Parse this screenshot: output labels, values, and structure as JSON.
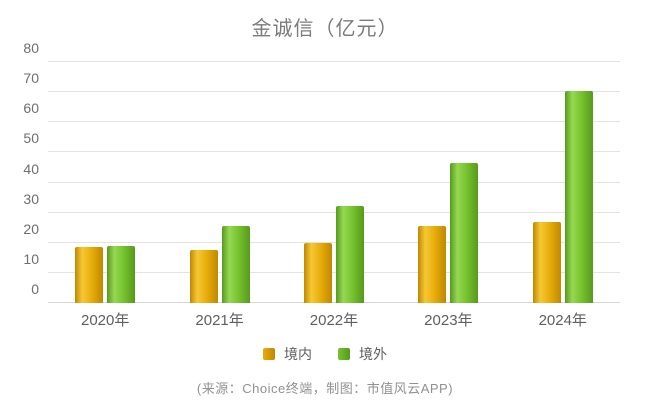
{
  "title": "金诚信（亿元）",
  "source_note": "(来源：Choice终端，制图：市值风云APP)",
  "colors": {
    "background": "#ffffff",
    "title_text": "#7b7b7b",
    "axis_text": "#6e6e6e",
    "gridline": "#e3e3e3",
    "source_text": "#919191"
  },
  "chart_data": {
    "type": "bar",
    "title": "金诚信（亿元）",
    "categories": [
      "2020年",
      "2021年",
      "2022年",
      "2023年",
      "2024年"
    ],
    "series": [
      {
        "name": "境内",
        "values": [
          18.5,
          17.6,
          20.0,
          25.5,
          27.0
        ],
        "color": "#E8AE0B",
        "color_light": "#F6C835",
        "color_dark": "#C08800"
      },
      {
        "name": "境外",
        "values": [
          18.8,
          25.4,
          32.2,
          46.5,
          70.4
        ],
        "color": "#76C42F",
        "color_light": "#96D852",
        "color_dark": "#57991C"
      }
    ],
    "xlabel": "",
    "ylabel": "",
    "ylim": [
      0,
      80
    ],
    "ytick_step": 10,
    "grid": true,
    "legend_position": "bottom"
  }
}
